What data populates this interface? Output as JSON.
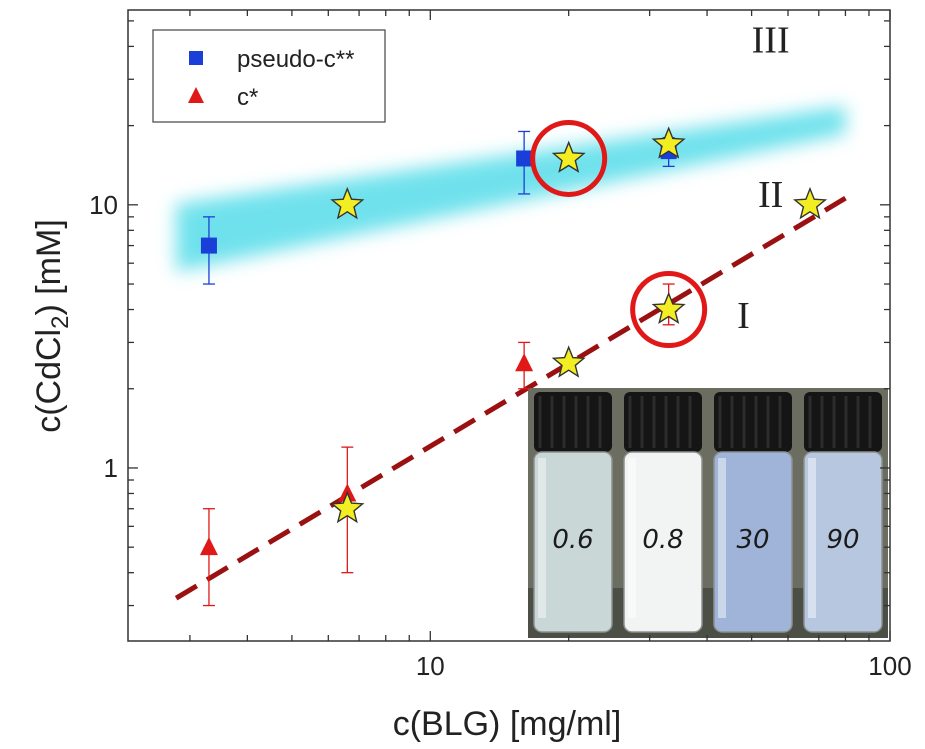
{
  "chart_data": {
    "type": "scatter",
    "x_scale": "log",
    "y_scale": "log",
    "xlim": [
      2.2,
      100
    ],
    "ylim": [
      0.22,
      55
    ],
    "xlabel": "c(BLG) [mg/ml]",
    "ylabel_parts": [
      "c(CdCl",
      "2",
      ") [mM]"
    ],
    "x_ticks": [
      {
        "value": 10,
        "label": "10"
      },
      {
        "value": 100,
        "label": "100"
      }
    ],
    "y_ticks": [
      {
        "value": 1,
        "label": "1"
      },
      {
        "value": 10,
        "label": "10"
      }
    ],
    "legend_position": "top-left",
    "series": [
      {
        "name": "pseudo-c**",
        "marker": "square",
        "color": "#1a3fd9",
        "points": [
          {
            "x": 3.3,
            "y": 7.0,
            "err_low": 5.0,
            "err_high": 9.0
          },
          {
            "x": 16.0,
            "y": 15.0,
            "err_low": 11.0,
            "err_high": 19.0
          },
          {
            "x": 33.0,
            "y": 16.0,
            "err_low": 14.0,
            "err_high": 18.0
          }
        ]
      },
      {
        "name": "c*",
        "marker": "triangle",
        "color": "#e01818",
        "points": [
          {
            "x": 3.3,
            "y": 0.5,
            "err_low": 0.3,
            "err_high": 0.7
          },
          {
            "x": 6.6,
            "y": 0.8,
            "err_low": 0.4,
            "err_high": 1.2
          },
          {
            "x": 16.0,
            "y": 2.5,
            "err_low": 2.0,
            "err_high": 3.0
          },
          {
            "x": 33.0,
            "y": 4.2,
            "err_low": 3.5,
            "err_high": 5.0
          }
        ]
      }
    ],
    "stars": {
      "color": "#f2ee22",
      "points": [
        {
          "x": 6.6,
          "y": 10.0
        },
        {
          "x": 6.6,
          "y": 0.7
        },
        {
          "x": 20.0,
          "y": 15.0
        },
        {
          "x": 33.0,
          "y": 17.0
        },
        {
          "x": 20.0,
          "y": 2.5
        },
        {
          "x": 33.0,
          "y": 4.0
        },
        {
          "x": 67.0,
          "y": 10.0
        }
      ]
    },
    "highlight_circles": [
      {
        "x": 20.0,
        "y": 15.0,
        "color": "#e01818"
      },
      {
        "x": 33.0,
        "y": 4.0,
        "color": "#e01818"
      }
    ],
    "dashed_fit": {
      "color": "#9b1010",
      "from": {
        "x": 2.8,
        "y": 0.32
      },
      "to": {
        "x": 80.0,
        "y": 10.6
      }
    },
    "band": {
      "color": "#3fd8e6",
      "from": {
        "x": 2.8,
        "y": 7.5
      },
      "to": {
        "x": 80.0,
        "y": 21.0
      }
    },
    "region_labels": [
      {
        "text": "III",
        "x": 55.0,
        "y": 38.0
      },
      {
        "text": "II",
        "x": 55.0,
        "y": 9.8
      },
      {
        "text": "I",
        "x": 48.0,
        "y": 3.4
      }
    ],
    "inset_photo": {
      "vial_labels": [
        "0.6",
        "0.8",
        "30",
        "90"
      ],
      "vial_colors": [
        "#c9d8d6",
        "#f2f4f4",
        "#9fb4d8",
        "#b7c7e0"
      ]
    }
  }
}
